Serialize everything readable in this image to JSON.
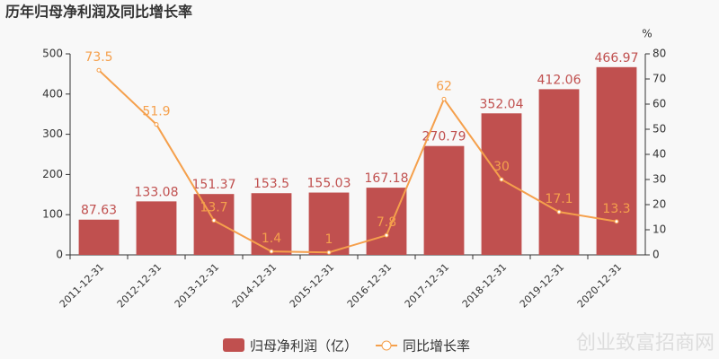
{
  "chart_data": {
    "type": "bar",
    "title": "历年归母净利润及同比增长率",
    "categories": [
      "2011-12-31",
      "2012-12-31",
      "2013-12-31",
      "2014-12-31",
      "2015-12-31",
      "2016-12-31",
      "2017-12-31",
      "2018-12-31",
      "2019-12-31",
      "2020-12-31"
    ],
    "series": [
      {
        "name": "归母净利润（亿）",
        "type": "bar",
        "color": "#c0504f",
        "values": [
          87.63,
          133.08,
          151.37,
          153.5,
          155.03,
          167.18,
          270.79,
          352.04,
          412.06,
          466.97
        ]
      },
      {
        "name": "同比增长率",
        "type": "line",
        "axis": "y2",
        "color": "#f5a04c",
        "values": [
          73.5,
          51.9,
          13.7,
          1.4,
          1,
          7.8,
          62,
          30,
          17.1,
          13.3
        ]
      }
    ],
    "ylim": [
      0,
      500
    ],
    "yticks": [
      0,
      100,
      200,
      300,
      400,
      500
    ],
    "y2lim": [
      0,
      80
    ],
    "y2ticks": [
      0,
      10,
      20,
      30,
      40,
      50,
      60,
      70,
      80
    ],
    "y2label": "%",
    "watermark": "创业致富招商网"
  }
}
